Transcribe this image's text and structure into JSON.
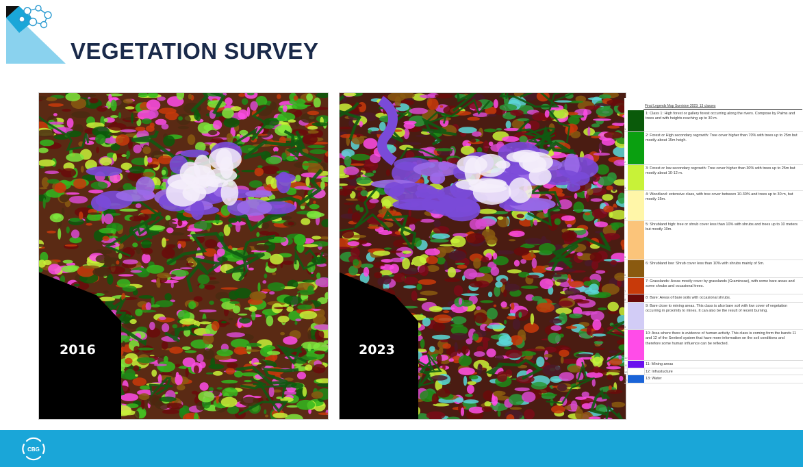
{
  "title": "VEGETATION SURVEY",
  "maps": [
    {
      "year": "2016"
    },
    {
      "year": "2023"
    }
  ],
  "legend": {
    "title": "Final Legends Map Survision 2023: 13 classes",
    "rows": [
      {
        "num": "1",
        "color": "#0a5a0a",
        "text": "1: Class 1: High forest or gallery forest occurring along the rivers. Compose by Palms and trees and with heights reaching up to 30 m."
      },
      {
        "num": "2",
        "color": "#0aa010",
        "text": "2: Forest or High secondary regrowth: Tree cover higher than 70% with trees up to 25m but mostly about 15m heigh."
      },
      {
        "num": "3",
        "color": "#c8f238",
        "text": "3: Forest or low secondary regrowth: Tree cover higher than 30% with trees up to 25m but mostly about 10-12 m."
      },
      {
        "num": "4",
        "color": "#fff6a8",
        "text": "4: Woodland: extensive class, with tree cover between 10-30% and trees up to 30 m, but mostly 15m."
      },
      {
        "num": "5",
        "color": "#fbc47a",
        "text": "5: Shrubland high: tree or shrub cover less than 10% with shrubs and trees up to 10 meters but mostly 10m."
      },
      {
        "num": "6",
        "color": "#8a5a10",
        "text": "6: Shrubland low: Shrub cover less than 10% with shrubs mainly of 5m."
      },
      {
        "num": "7",
        "color": "#c83a0a",
        "text": "7: Grasslands: Areas mostly cover by grasslands (Gramineae), with some bare areas and some shrubs and occasional trees."
      },
      {
        "num": "8",
        "color": "#6a0a0a",
        "text": "8: Bare: Areas of bare soils with occasional shrubs."
      },
      {
        "num": "9",
        "color": "#d2ccf6",
        "text": "9: Bare close to mining areas. This class is also bare soil with low cover of vegetation occurring in proximity to mines. It can also be the result of recent burning."
      },
      {
        "num": "10",
        "color": "#ff4ce8",
        "text": "10: Area where there is evidence of human activity. This class is coming form the bands 11 and 12 of the Sentinel system that have more information on the soil conditions and therefore some human influence can be reflected."
      },
      {
        "num": "11",
        "color": "#6a10ee",
        "text": "11: Mining areas"
      },
      {
        "num": "12",
        "color": "#ffffff",
        "text": "12: Infrastucture"
      },
      {
        "num": "13",
        "color": "#1a64d8",
        "text": "13: Water"
      }
    ]
  },
  "footer": {
    "logo_text": "CBG",
    "color": "#1aa6d8"
  }
}
